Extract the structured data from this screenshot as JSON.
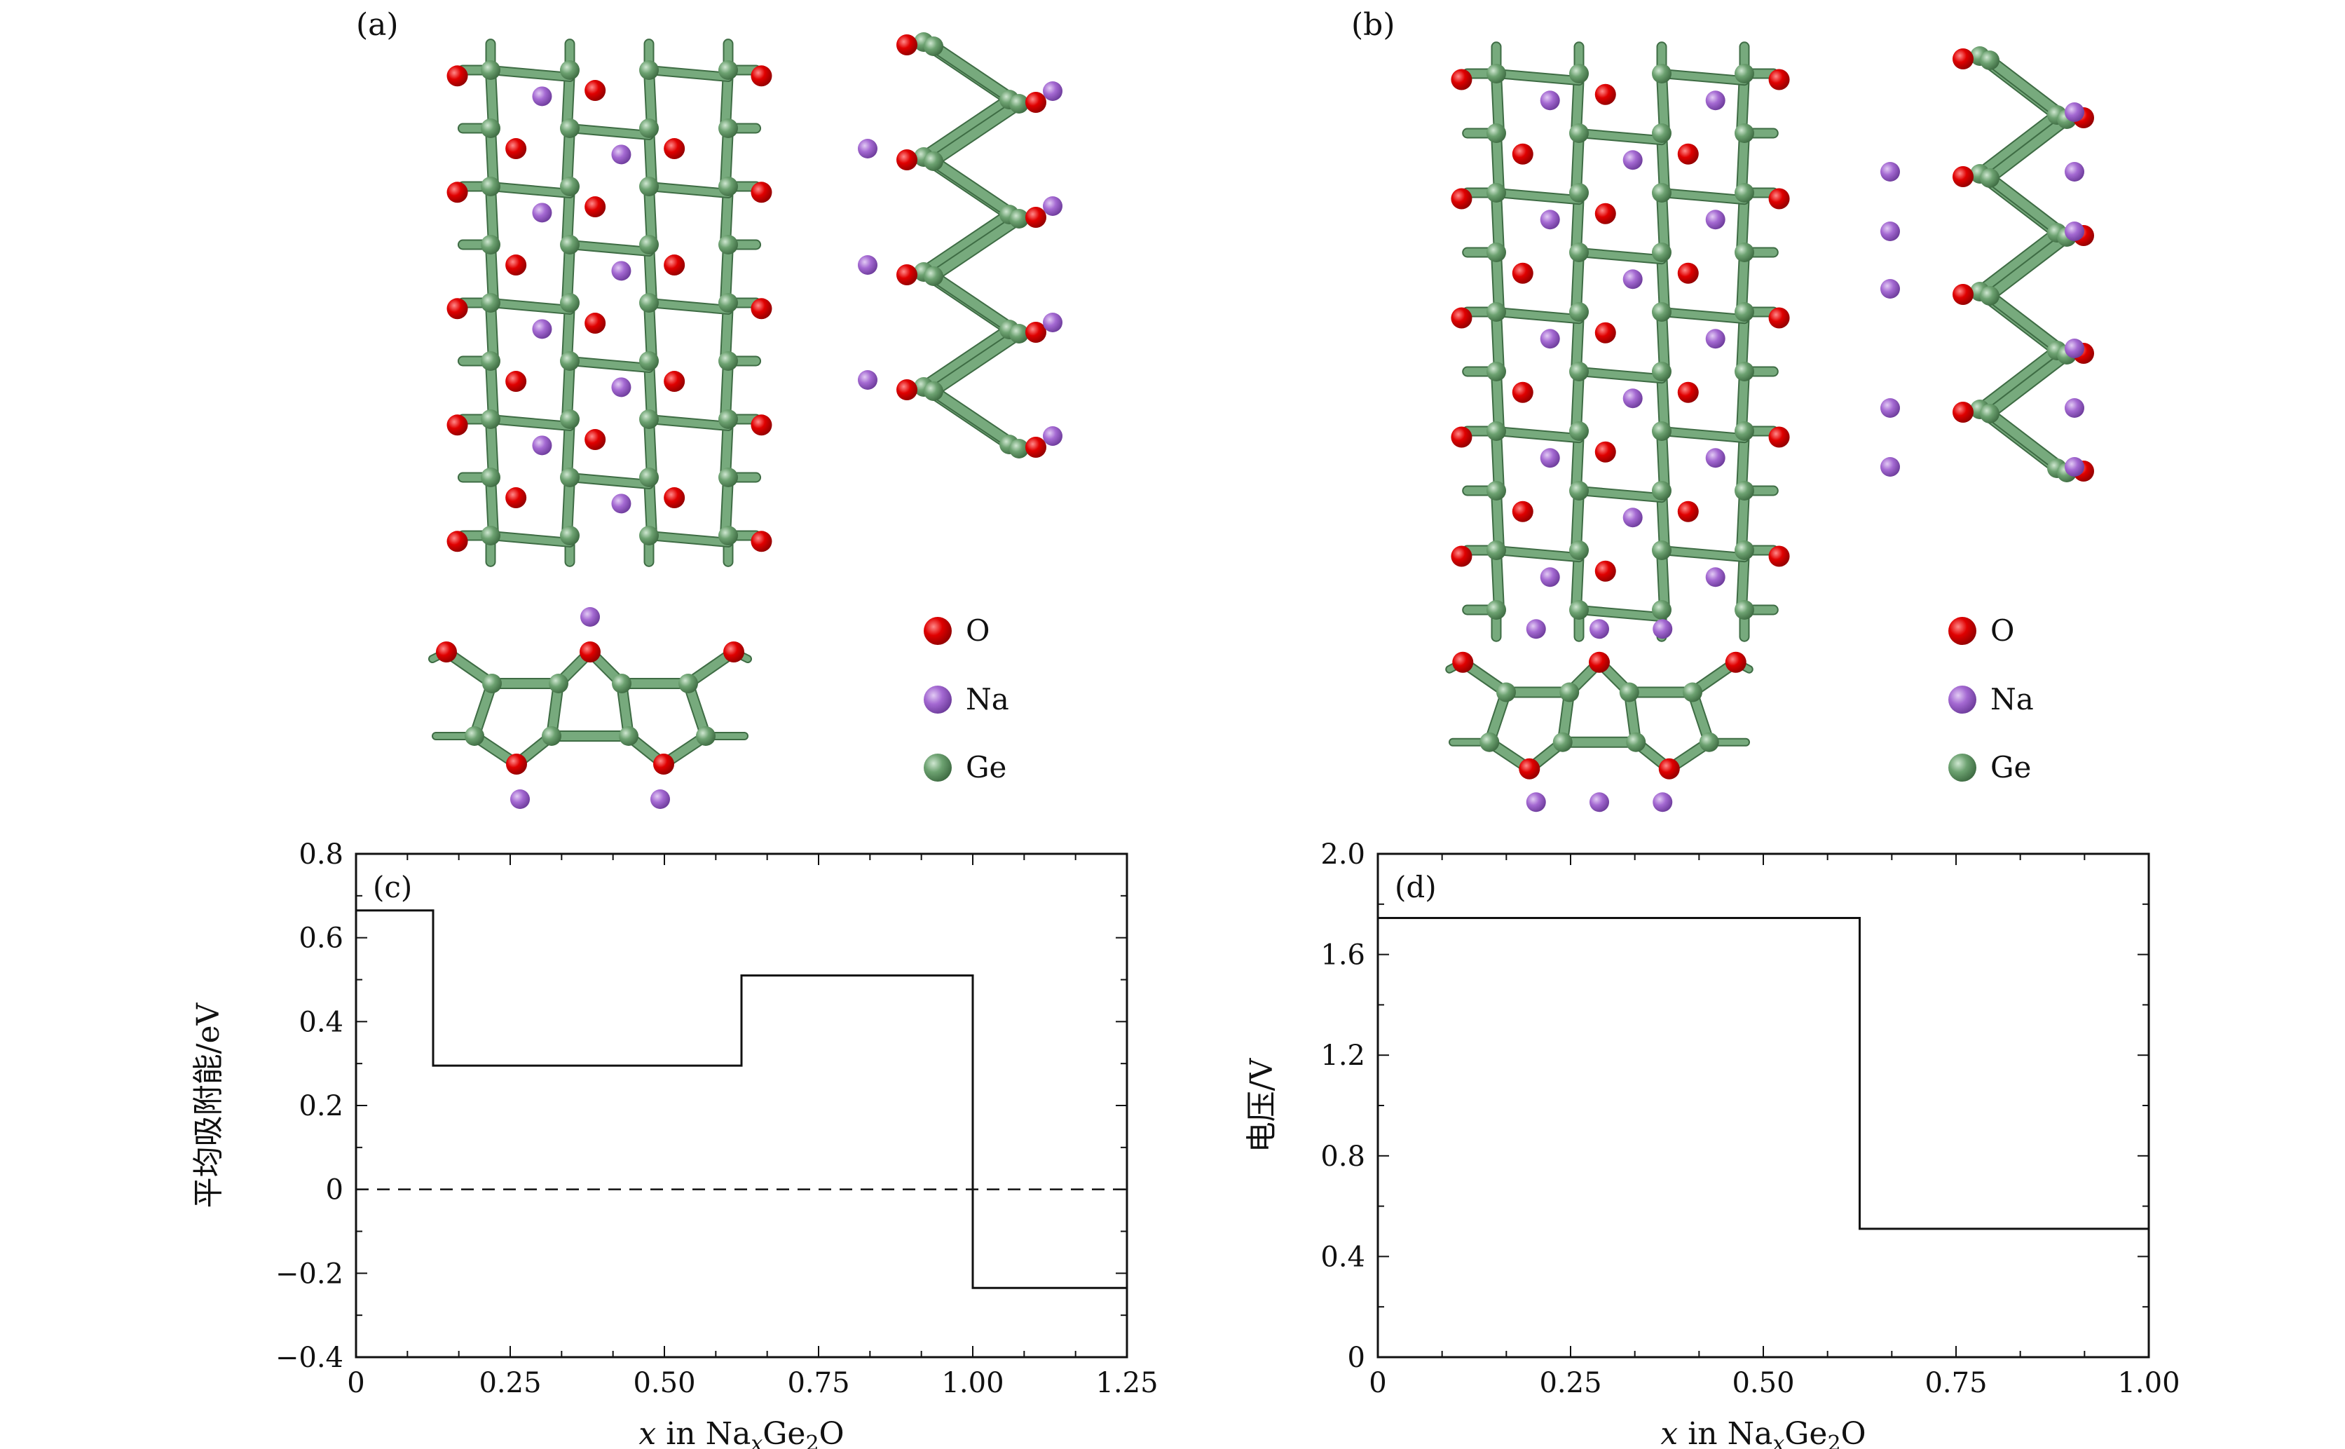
{
  "panels": {
    "a": {
      "label": "(a)"
    },
    "b": {
      "label": "(b)"
    }
  },
  "legend": {
    "items": [
      {
        "symbol": "O",
        "color": "#e00000"
      },
      {
        "symbol": "Na",
        "color": "#a469d2"
      },
      {
        "symbol": "Ge",
        "color": "#6da271"
      }
    ]
  },
  "colors": {
    "ge": "#6da271",
    "o": "#e00000",
    "na": "#a469d2",
    "bond": "#77aa7d"
  },
  "chart_data": [
    {
      "panel": "(c)",
      "type": "line",
      "step": true,
      "xlabel": "x in NaxGe2O",
      "xlabel_parts": {
        "var": "x",
        "pre": " in Na",
        "sub1": "x",
        "mid": "Ge",
        "sub2": "2",
        "post": "O"
      },
      "ylabel": "平均吸附能/eV",
      "xlim": [
        0,
        1.25
      ],
      "ylim": [
        -0.4,
        0.8
      ],
      "xticks": [
        "0",
        "0.25",
        "0.50",
        "0.75",
        "1.00",
        "1.25"
      ],
      "xtick_values": [
        0,
        0.25,
        0.5,
        0.75,
        1.0,
        1.25
      ],
      "yticks": [
        "−0.4",
        "−0.2",
        "0",
        "0.2",
        "0.4",
        "0.6",
        "0.8"
      ],
      "ytick_values": [
        -0.4,
        -0.2,
        0,
        0.2,
        0.4,
        0.6,
        0.8
      ],
      "x": [
        0,
        0.125,
        0.125,
        0.625,
        0.625,
        1.0,
        1.0,
        1.25
      ],
      "y": [
        0.665,
        0.665,
        0.295,
        0.295,
        0.51,
        0.51,
        -0.235,
        -0.235
      ],
      "reference_line": {
        "y": 0,
        "style": "dashed"
      },
      "grid": false
    },
    {
      "panel": "(d)",
      "type": "line",
      "step": true,
      "xlabel": "x in NaxGe2O",
      "xlabel_parts": {
        "var": "x",
        "pre": " in Na",
        "sub1": "x",
        "mid": "Ge",
        "sub2": "2",
        "post": "O"
      },
      "ylabel": "电压/V",
      "xlim": [
        0,
        1.0
      ],
      "ylim": [
        0,
        2.0
      ],
      "xticks": [
        "0",
        "0.25",
        "0.50",
        "0.75",
        "1.00"
      ],
      "xtick_values": [
        0,
        0.25,
        0.5,
        0.75,
        1.0
      ],
      "yticks": [
        "0",
        "0.4",
        "0.8",
        "1.2",
        "1.6",
        "2.0"
      ],
      "ytick_values": [
        0,
        0.4,
        0.8,
        1.2,
        1.6,
        2.0
      ],
      "x": [
        0,
        0.625,
        0.625,
        1.0
      ],
      "y": [
        1.745,
        1.745,
        0.51,
        0.51
      ],
      "grid": false
    }
  ]
}
